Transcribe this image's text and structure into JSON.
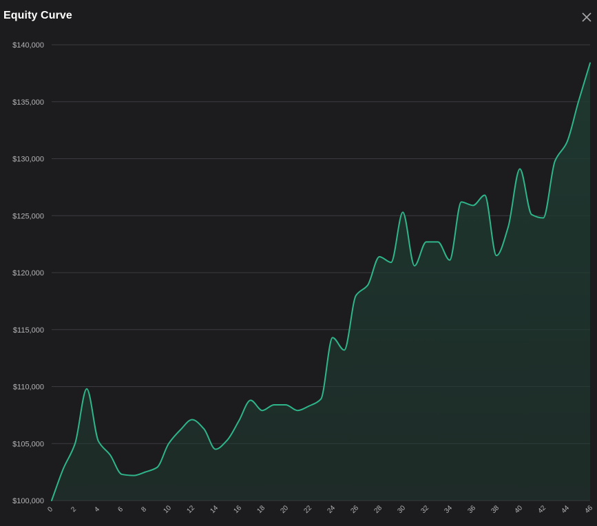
{
  "header": {
    "title": "Equity Curve",
    "close_icon": "close-icon"
  },
  "colors": {
    "background": "#1c1c1e",
    "line": "#2fb58a",
    "fill": "#1f3a31",
    "grid": "#3c3c40",
    "text": "#b4b4b8"
  },
  "chart_data": {
    "type": "area",
    "title": "Equity Curve",
    "xlabel": "",
    "ylabel": "",
    "x": [
      0,
      1,
      2,
      3,
      4,
      5,
      6,
      7,
      8,
      9,
      10,
      11,
      12,
      13,
      14,
      15,
      16,
      17,
      18,
      19,
      20,
      21,
      22,
      23,
      24,
      25,
      26,
      27,
      28,
      29,
      30,
      31,
      32,
      33,
      34,
      35,
      36,
      37,
      38,
      39,
      40,
      41,
      42,
      43,
      44,
      45,
      46
    ],
    "series": [
      {
        "values": [
          100000,
          102800,
          105000,
          109800,
          105200,
          104000,
          102300,
          102200,
          102500,
          102900,
          105000,
          106200,
          107100,
          106300,
          104500,
          105300,
          107000,
          108800,
          107900,
          108400,
          108400,
          107900,
          108300,
          108900,
          114300,
          113200,
          118000,
          118900,
          121400,
          120900,
          125300,
          120600,
          122700,
          122700,
          121100,
          126200,
          125900,
          126800,
          121500,
          124000,
          129100,
          125100,
          124800,
          129800,
          131400,
          135000,
          138400
        ]
      }
    ],
    "xticks": [
      "0",
      "2",
      "4",
      "6",
      "8",
      "10",
      "12",
      "14",
      "16",
      "18",
      "20",
      "22",
      "24",
      "26",
      "28",
      "30",
      "32",
      "34",
      "36",
      "38",
      "40",
      "42",
      "44",
      "46"
    ],
    "yticks": [
      "$100,000",
      "$105,000",
      "$110,000",
      "$115,000",
      "$120,000",
      "$125,000",
      "$130,000",
      "$135,000",
      "$140,000"
    ],
    "xlim": [
      0,
      46
    ],
    "ylim": [
      100000,
      140000
    ],
    "grid": true,
    "legend": "none"
  }
}
